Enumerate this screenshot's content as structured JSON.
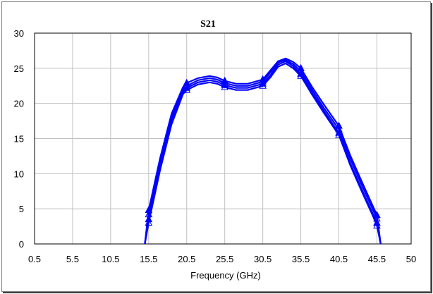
{
  "chart_data": {
    "type": "line",
    "title": "S21",
    "xlabel": "Frequency (GHz)",
    "ylabel": "",
    "xlim": [
      0.5,
      50
    ],
    "ylim": [
      0,
      30
    ],
    "x_ticks": [
      "0.5",
      "5.5",
      "10.5",
      "15.5",
      "20.5",
      "25.5",
      "30.5",
      "35.5",
      "40.5",
      "45.5",
      "50"
    ],
    "x_tick_values": [
      0.5,
      5.5,
      10.5,
      15.5,
      20.5,
      25.5,
      30.5,
      35.5,
      40.5,
      45.5,
      50
    ],
    "y_ticks": [
      "0",
      "5",
      "10",
      "15",
      "20",
      "25",
      "30"
    ],
    "y_tick_values": [
      0,
      5,
      10,
      15,
      20,
      25,
      30
    ],
    "grid": true,
    "legend": "none",
    "color": "#0000ff",
    "marker": "triangle",
    "marker_x": [
      15.5,
      20.5,
      25.5,
      30.5,
      35.5,
      40.5,
      45.5
    ],
    "series": [
      {
        "x": [
          15.0,
          15.5,
          17.0,
          18.5,
          20.0,
          20.5,
          22.0,
          23.5,
          24.5,
          25.5,
          27.0,
          28.5,
          30.5,
          31.5,
          32.5,
          33.5,
          34.5,
          35.5,
          37.0,
          38.5,
          40.5,
          42.0,
          43.5,
          45.0,
          45.5,
          46.0
        ],
        "y": [
          0,
          3.5,
          11.0,
          17.5,
          21.6,
          22.2,
          23.0,
          23.3,
          23.1,
          22.6,
          22.2,
          22.2,
          22.8,
          24.0,
          25.5,
          26.0,
          25.3,
          24.2,
          21.5,
          19.0,
          15.8,
          11.5,
          7.8,
          4.2,
          3.0,
          0
        ]
      },
      {
        "x": [
          15.0,
          15.5,
          17.0,
          18.5,
          20.0,
          20.5,
          22.0,
          23.5,
          24.5,
          25.5,
          27.0,
          28.5,
          30.5,
          31.5,
          32.5,
          33.5,
          34.5,
          35.5,
          37.0,
          38.5,
          40.5,
          42.0,
          43.5,
          45.0,
          45.5,
          46.0
        ],
        "y": [
          0,
          4.2,
          11.6,
          18.0,
          21.9,
          22.5,
          23.3,
          23.6,
          23.4,
          22.9,
          22.5,
          22.5,
          23.1,
          24.4,
          25.8,
          26.2,
          25.6,
          24.6,
          21.9,
          19.4,
          16.3,
          12.1,
          8.4,
          4.8,
          3.6,
          0
        ]
      },
      {
        "x": [
          15.0,
          15.5,
          17.0,
          18.5,
          20.0,
          20.5,
          22.0,
          23.5,
          24.5,
          25.5,
          27.0,
          28.5,
          30.5,
          31.5,
          32.5,
          33.5,
          34.5,
          35.5,
          37.0,
          38.5,
          40.5,
          42.0,
          43.5,
          45.0,
          45.5,
          46.0
        ],
        "y": [
          0,
          4.8,
          12.2,
          18.5,
          22.3,
          22.9,
          23.6,
          23.9,
          23.7,
          23.2,
          22.8,
          22.8,
          23.4,
          24.7,
          26.0,
          26.4,
          25.9,
          25.0,
          22.3,
          19.9,
          16.8,
          12.6,
          8.9,
          5.3,
          4.1,
          0
        ]
      },
      {
        "x": [
          15.0,
          15.5,
          17.0,
          18.5,
          20.0,
          20.5,
          22.0,
          23.5,
          24.5,
          25.5,
          27.0,
          28.5,
          30.5,
          31.5,
          32.5,
          33.5,
          34.5,
          35.5,
          37.0,
          38.5,
          40.5,
          42.0,
          43.5,
          45.0,
          45.5,
          46.0
        ],
        "y": [
          0,
          3.0,
          10.5,
          17.0,
          21.3,
          21.9,
          22.7,
          23.0,
          22.8,
          22.3,
          21.9,
          21.9,
          22.5,
          23.7,
          25.2,
          25.7,
          25.0,
          23.9,
          21.2,
          18.7,
          15.5,
          11.2,
          7.5,
          3.9,
          2.6,
          0
        ]
      }
    ]
  }
}
